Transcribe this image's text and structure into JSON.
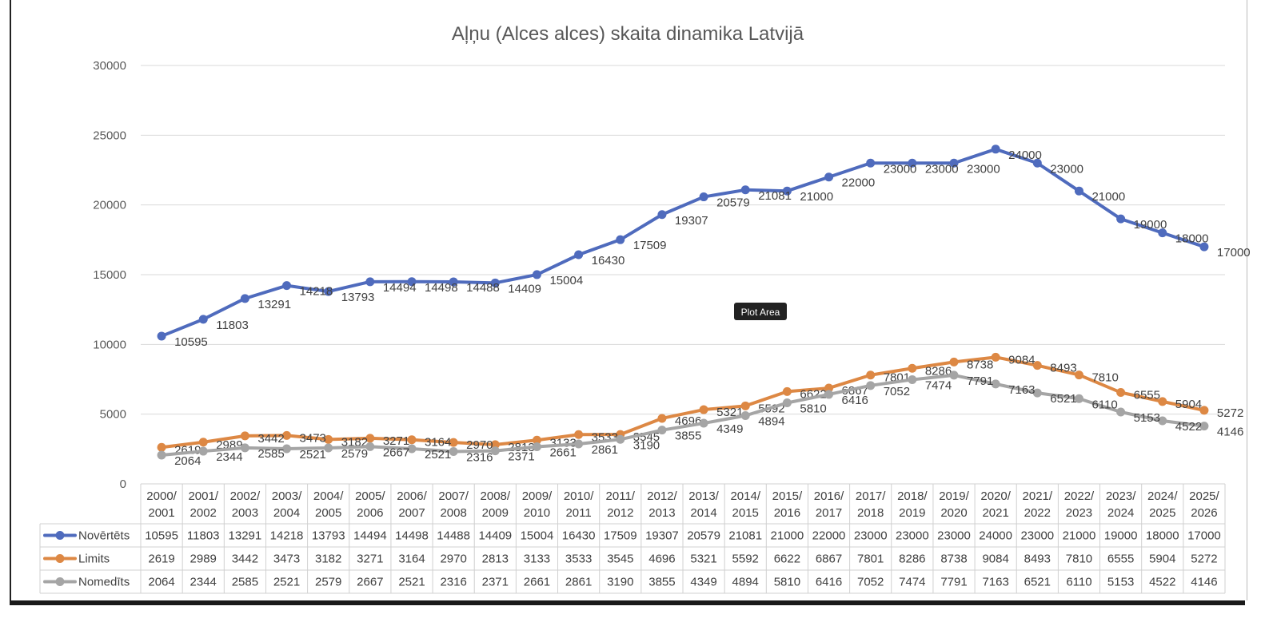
{
  "chart_data": {
    "type": "line",
    "title": "Aļņu (Alces alces) skaita dinamika Latvijā",
    "categories": [
      [
        "2000/",
        "2001"
      ],
      [
        "2001/",
        "2002"
      ],
      [
        "2002/",
        "2003"
      ],
      [
        "2003/",
        "2004"
      ],
      [
        "2004/",
        "2005"
      ],
      [
        "2005/",
        "2006"
      ],
      [
        "2006/",
        "2007"
      ],
      [
        "2007/",
        "2008"
      ],
      [
        "2008/",
        "2009"
      ],
      [
        "2009/",
        "2010"
      ],
      [
        "2010/",
        "2011"
      ],
      [
        "2011/",
        "2012"
      ],
      [
        "2012/",
        "2013"
      ],
      [
        "2013/",
        "2014"
      ],
      [
        "2014/",
        "2015"
      ],
      [
        "2015/",
        "2016"
      ],
      [
        "2016/",
        "2017"
      ],
      [
        "2017/",
        "2018"
      ],
      [
        "2018/",
        "2019"
      ],
      [
        "2019/",
        "2020"
      ],
      [
        "2020/",
        "2021"
      ],
      [
        "2021/",
        "2022"
      ],
      [
        "2022/",
        "2023"
      ],
      [
        "2023/",
        "2024"
      ],
      [
        "2024/",
        "2025"
      ],
      [
        "2025/",
        "2026"
      ]
    ],
    "yticks": [
      0,
      5000,
      10000,
      15000,
      20000,
      25000,
      30000
    ],
    "ylim": [
      0,
      30000
    ],
    "grid": true,
    "legend": "data-table-left",
    "series": [
      {
        "name": "Novērtēts",
        "color": "#4f6bbd",
        "values": [
          10595,
          11803,
          13291,
          14218,
          13793,
          14494,
          14498,
          14488,
          14409,
          15004,
          16430,
          17509,
          19307,
          20579,
          21081,
          21000,
          22000,
          23000,
          23000,
          23000,
          24000,
          23000,
          21000,
          19000,
          18000,
          17000
        ]
      },
      {
        "name": "Limits",
        "color": "#dd8844",
        "values": [
          2619,
          2989,
          3442,
          3473,
          3182,
          3271,
          3164,
          2970,
          2813,
          3133,
          3533,
          3545,
          4696,
          5321,
          5592,
          6622,
          6867,
          7801,
          8286,
          8738,
          9084,
          8493,
          7810,
          6555,
          5904,
          5272
        ]
      },
      {
        "name": "Nomedīts",
        "color": "#a5a5a5",
        "values": [
          2064,
          2344,
          2585,
          2521,
          2579,
          2667,
          2521,
          2316,
          2371,
          2661,
          2861,
          3190,
          3855,
          4349,
          4894,
          5810,
          6416,
          7052,
          7474,
          7791,
          7163,
          6521,
          6110,
          5153,
          4522,
          4146
        ]
      }
    ]
  },
  "ui": {
    "tooltip": "Plot Area"
  }
}
